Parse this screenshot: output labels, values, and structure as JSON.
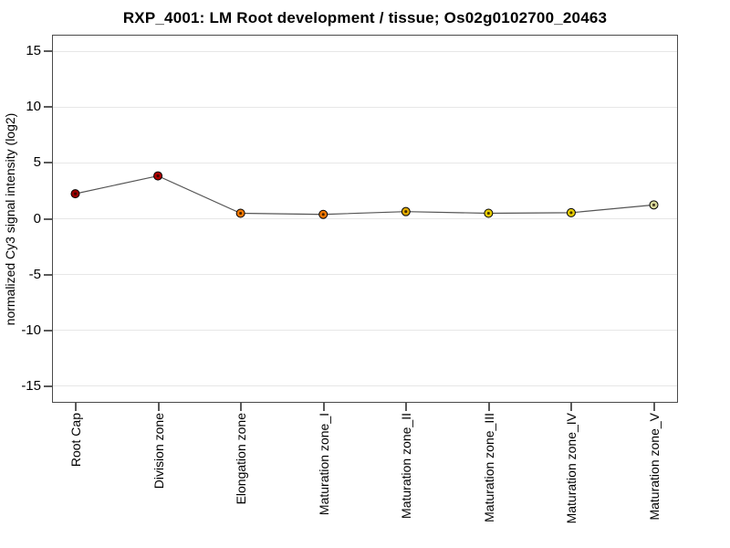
{
  "page": {
    "background": "#ffffff"
  },
  "chart_data": {
    "type": "line",
    "title": "RXP_4001: LM Root development / tissue; Os02g0102700_20463",
    "xlabel": "",
    "ylabel": "normalized Cy3 signal intensity (log2)",
    "categories": [
      "Root Cap",
      "Division zone",
      "Elongation zone",
      "Maturation zone_I",
      "Maturation zone_II",
      "Maturation zone_III",
      "Maturation zone_IV",
      "Maturation zone_V"
    ],
    "series": [
      {
        "name": "normalized Cy3 signal intensity (log2)",
        "values": [
          2.2,
          3.8,
          0.45,
          0.35,
          0.6,
          0.45,
          0.5,
          1.2
        ]
      }
    ],
    "point_colors": [
      "#990000",
      "#b00000",
      "#f07800",
      "#f07800",
      "#e0aa00",
      "#e6cc00",
      "#e6cc00",
      "#d8d89a"
    ],
    "marker_outline_color": "#000000",
    "marker_center_dot_color": "#1a0a00",
    "line_color": "#555555",
    "yticks": [
      15,
      10,
      5,
      0,
      -5,
      -10,
      -15
    ],
    "ylim": [
      -16.5,
      16.5
    ],
    "grid": true,
    "grid_color": "#e7e7e7",
    "axis_border_color": "#4a4a4a",
    "legend": "none"
  }
}
